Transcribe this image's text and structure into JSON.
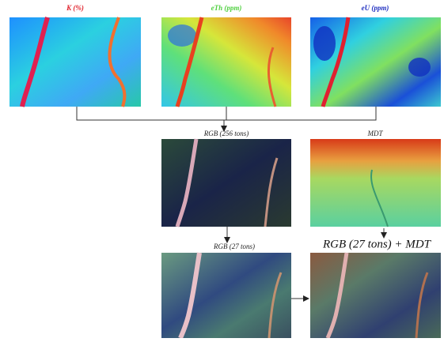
{
  "panels": [
    {
      "label": "K (%)"
    },
    {
      "label": "eTh (ppm)"
    },
    {
      "label": "eU (ppm)"
    },
    {
      "label": "RGB (256 tons)"
    },
    {
      "label": "MDT"
    },
    {
      "label": "RGB (27  tons)"
    },
    {
      "label": "RGB (27 tons) + MDT"
    }
  ]
}
